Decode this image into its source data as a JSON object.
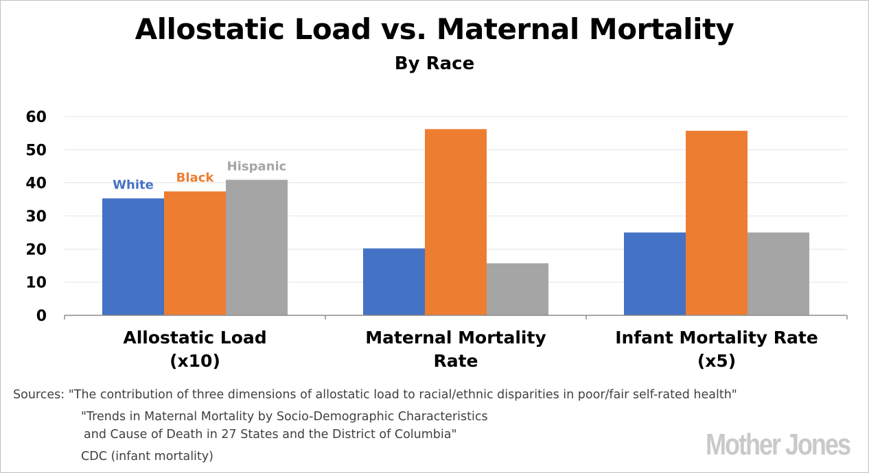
{
  "chart_data": {
    "type": "bar",
    "title": "Allostatic Load vs. Maternal Mortality",
    "subtitle": "By Race",
    "categories": [
      [
        "Allostatic Load",
        "(x10)"
      ],
      [
        "Maternal Mortality",
        "Rate"
      ],
      [
        "Infant Mortality Rate",
        "(x5)"
      ]
    ],
    "series": [
      {
        "name": "White",
        "color": "#4472c4",
        "values": [
          35.3,
          20.2,
          25.0
        ]
      },
      {
        "name": "Black",
        "color": "#ed7d31",
        "values": [
          37.4,
          56.2,
          55.7
        ]
      },
      {
        "name": "Hispanic",
        "color": "#a5a5a5",
        "values": [
          40.9,
          15.7,
          25.0
        ]
      }
    ],
    "yticks": [
      "0",
      "10",
      "20",
      "30",
      "40",
      "50",
      "60"
    ],
    "ylim": [
      0,
      60
    ],
    "grid": true,
    "xlabel": "",
    "ylabel": ""
  },
  "sources": {
    "label": "Sources:",
    "line1": "\"The contribution of three dimensions of allostatic load to racial/ethnic disparities in poor/fair self-rated health\"",
    "line2": "\"Trends in Maternal Mortality by Socio-Demographic Characteristics",
    "line3": "and Cause of Death in 27 States and the District of Columbia\"",
    "line4": "CDC (infant mortality)"
  },
  "logo": "Mother Jones"
}
